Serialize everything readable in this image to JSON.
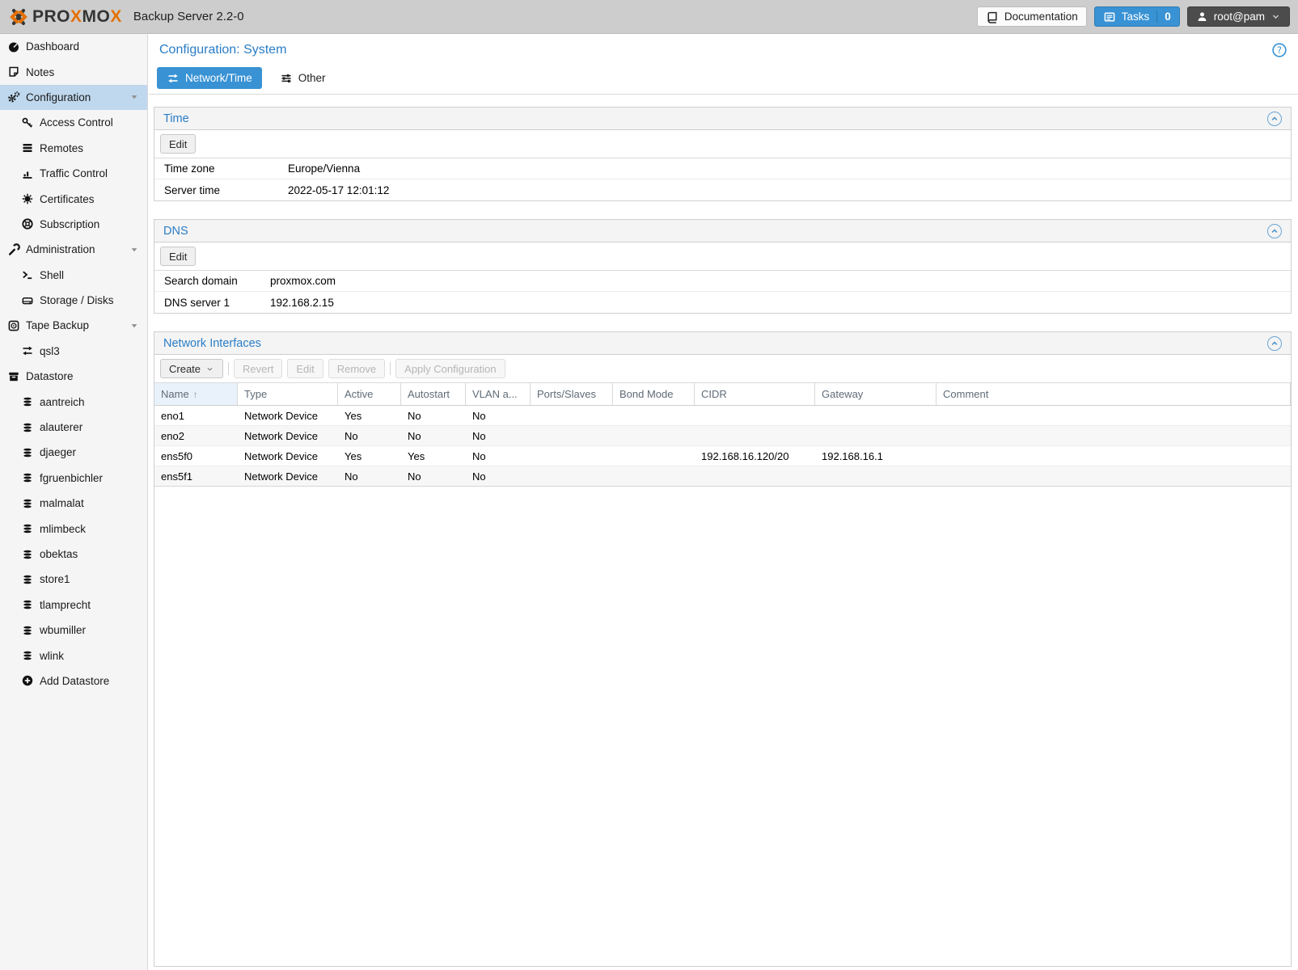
{
  "colors": {
    "accent": "#3892d4",
    "heading": "#2a7dc5",
    "sel": "#bfd8ee",
    "orange": "#e57000",
    "topbar": "#cdcdcd"
  },
  "topbar": {
    "brand_segments": [
      {
        "t": "PRO",
        "accent": false
      },
      {
        "t": "X",
        "accent": true
      },
      {
        "t": "MO",
        "accent": false
      },
      {
        "t": "X",
        "accent": true
      }
    ],
    "title": "Backup Server 2.2-0",
    "documentation_label": "Documentation",
    "tasks_label": "Tasks",
    "tasks_count": "0",
    "user_label": "root@pam"
  },
  "sidebar": {
    "items": [
      {
        "label": "Dashboard",
        "icon": "tachometer",
        "level": 0,
        "selected": false,
        "expandable": false
      },
      {
        "label": "Notes",
        "icon": "note",
        "level": 0,
        "selected": false,
        "expandable": false
      },
      {
        "label": "Configuration",
        "icon": "gears",
        "level": 0,
        "selected": true,
        "expandable": true
      },
      {
        "label": "Access Control",
        "icon": "key",
        "level": 1,
        "selected": false,
        "expandable": false
      },
      {
        "label": "Remotes",
        "icon": "list",
        "level": 1,
        "selected": false,
        "expandable": false
      },
      {
        "label": "Traffic Control",
        "icon": "chart",
        "level": 1,
        "selected": false,
        "expandable": false
      },
      {
        "label": "Certificates",
        "icon": "certificate",
        "level": 1,
        "selected": false,
        "expandable": false
      },
      {
        "label": "Subscription",
        "icon": "lifering",
        "level": 1,
        "selected": false,
        "expandable": false
      },
      {
        "label": "Administration",
        "icon": "wrench",
        "level": 0,
        "selected": false,
        "expandable": true
      },
      {
        "label": "Shell",
        "icon": "terminal",
        "level": 1,
        "selected": false,
        "expandable": false
      },
      {
        "label": "Storage / Disks",
        "icon": "hdd",
        "level": 1,
        "selected": false,
        "expandable": false
      },
      {
        "label": "Tape Backup",
        "icon": "tape",
        "level": 0,
        "selected": false,
        "expandable": true
      },
      {
        "label": "qsl3",
        "icon": "exchange",
        "level": 1,
        "selected": false,
        "expandable": false
      },
      {
        "label": "Datastore",
        "icon": "archive",
        "level": 0,
        "selected": false,
        "expandable": false
      },
      {
        "label": "aantreich",
        "icon": "database",
        "level": 1,
        "selected": false,
        "expandable": false
      },
      {
        "label": "alauterer",
        "icon": "database",
        "level": 1,
        "selected": false,
        "expandable": false
      },
      {
        "label": "djaeger",
        "icon": "database",
        "level": 1,
        "selected": false,
        "expandable": false
      },
      {
        "label": "fgruenbichler",
        "icon": "database",
        "level": 1,
        "selected": false,
        "expandable": false
      },
      {
        "label": "malmalat",
        "icon": "database",
        "level": 1,
        "selected": false,
        "expandable": false
      },
      {
        "label": "mlimbeck",
        "icon": "database",
        "level": 1,
        "selected": false,
        "expandable": false
      },
      {
        "label": "obektas",
        "icon": "database",
        "level": 1,
        "selected": false,
        "expandable": false
      },
      {
        "label": "store1",
        "icon": "database",
        "level": 1,
        "selected": false,
        "expandable": false
      },
      {
        "label": "tlamprecht",
        "icon": "database",
        "level": 1,
        "selected": false,
        "expandable": false
      },
      {
        "label": "wbumiller",
        "icon": "database",
        "level": 1,
        "selected": false,
        "expandable": false
      },
      {
        "label": "wlink",
        "icon": "database",
        "level": 1,
        "selected": false,
        "expandable": false
      },
      {
        "label": "Add Datastore",
        "icon": "pluscircle",
        "level": 1,
        "selected": false,
        "expandable": false
      }
    ]
  },
  "content": {
    "page_title": "Configuration: System",
    "tabs": [
      {
        "label": "Network/Time",
        "icon": "exchange",
        "active": true
      },
      {
        "label": "Other",
        "icon": "sliders",
        "active": false
      }
    ],
    "time_panel": {
      "title": "Time",
      "edit_label": "Edit",
      "rows": [
        [
          "Time zone",
          "Europe/Vienna"
        ],
        [
          "Server time",
          "2022-05-17 12:01:12"
        ]
      ]
    },
    "dns_panel": {
      "title": "DNS",
      "edit_label": "Edit",
      "rows": [
        [
          "Search domain",
          "proxmox.com"
        ],
        [
          "DNS server 1",
          "192.168.2.15"
        ]
      ]
    },
    "network_panel": {
      "title": "Network Interfaces",
      "toolbar": {
        "create": "Create",
        "revert": "Revert",
        "edit": "Edit",
        "remove": "Remove",
        "apply": "Apply Configuration"
      },
      "columns": [
        "Name",
        "Type",
        "Active",
        "Autostart",
        "VLAN a...",
        "Ports/Slaves",
        "Bond Mode",
        "CIDR",
        "Gateway",
        "Comment"
      ],
      "rows": [
        [
          "eno1",
          "Network Device",
          "Yes",
          "No",
          "No",
          "",
          "",
          "",
          "",
          ""
        ],
        [
          "eno2",
          "Network Device",
          "No",
          "No",
          "No",
          "",
          "",
          "",
          "",
          ""
        ],
        [
          "ens5f0",
          "Network Device",
          "Yes",
          "Yes",
          "No",
          "",
          "",
          "192.168.16.120/20",
          "192.168.16.1",
          ""
        ],
        [
          "ens5f1",
          "Network Device",
          "No",
          "No",
          "No",
          "",
          "",
          "",
          "",
          ""
        ]
      ]
    }
  }
}
